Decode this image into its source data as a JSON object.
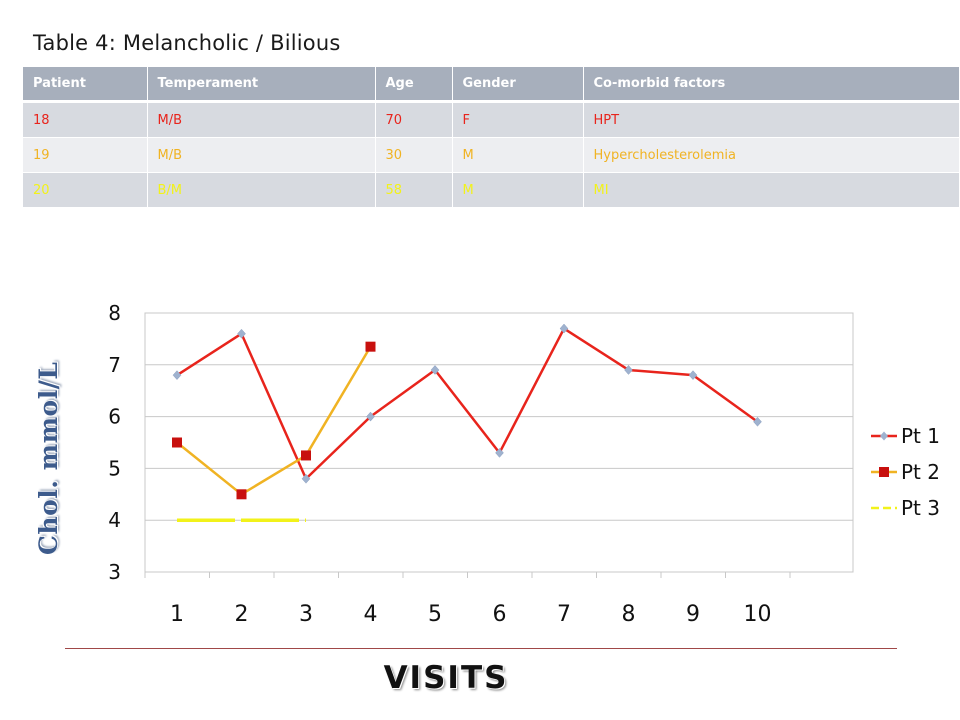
{
  "title": "Table 4: Melancholic / Bilious",
  "table": {
    "headers": [
      "Patient",
      "Temperament",
      "Age",
      "Gender",
      "Co-morbid factors"
    ],
    "rows": [
      {
        "cells": [
          "18",
          "M/B",
          "70",
          "F",
          "HPT"
        ],
        "color": "#e8241c"
      },
      {
        "cells": [
          "19",
          "M/B",
          "30",
          "M",
          "Hypercholesterolemia"
        ],
        "color": "#f0b323"
      },
      {
        "cells": [
          "20",
          "B/M",
          "58",
          "M",
          "MI"
        ],
        "color": "#f2f21a"
      }
    ],
    "header_color": "#a7afbc"
  },
  "chart_data": {
    "type": "line",
    "ylabel": "Chol. mmol/L",
    "xlabel": "VISITS",
    "ylim": [
      3,
      8
    ],
    "yticks": [
      "3",
      "4",
      "5",
      "6",
      "7",
      "8"
    ],
    "xticks": [
      "1",
      "2",
      "3",
      "4",
      "5",
      "6",
      "7",
      "8",
      "9",
      "10"
    ],
    "grid": "horizontal",
    "legend_position": "right",
    "series": [
      {
        "name": "Pt 1",
        "color": "#e8241c",
        "marker": "diamond",
        "marker_color": "#9fb2cf",
        "points": [
          [
            1,
            6.8
          ],
          [
            2,
            7.6
          ],
          [
            3,
            4.8
          ],
          [
            4,
            6.0
          ],
          [
            5,
            6.9
          ],
          [
            6,
            5.3
          ],
          [
            7,
            7.7
          ],
          [
            8,
            6.9
          ],
          [
            9,
            6.8
          ],
          [
            10,
            5.9
          ]
        ]
      },
      {
        "name": "Pt 2",
        "color": "#f0b323",
        "marker": "square",
        "marker_color": "#c8100e",
        "points": [
          [
            1,
            5.5
          ],
          [
            2,
            4.5
          ],
          [
            3,
            5.25
          ],
          [
            4,
            7.35
          ]
        ]
      },
      {
        "name": "Pt 3",
        "color": "#f2f21a",
        "marker": "none",
        "dashed": true,
        "points": [
          [
            1,
            4.0
          ],
          [
            2,
            4.0
          ],
          [
            3,
            4.0
          ]
        ]
      }
    ]
  }
}
